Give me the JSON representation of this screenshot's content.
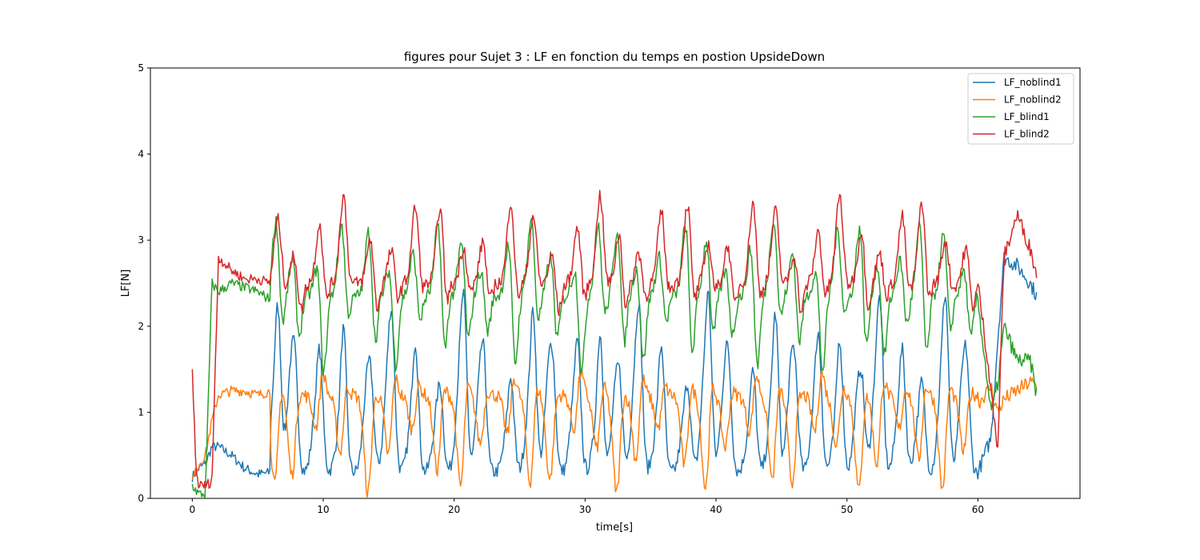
{
  "chart_data": {
    "type": "line",
    "title": "figures pour Sujet 3 : LF en fonction du temps en postion UpsideDown",
    "xlabel": "time[s]",
    "ylabel": "LF[N]",
    "xlim": [
      -3.2,
      67.8
    ],
    "ylim": [
      0,
      5
    ],
    "xticks": [
      "0",
      "10",
      "20",
      "30",
      "40",
      "50",
      "60"
    ],
    "yticks": [
      "0",
      "1",
      "2",
      "3",
      "4",
      "5"
    ],
    "legend_position": "top-right",
    "cycle_centers": [
      6.4,
      7.7,
      9.6,
      11.4,
      13.5,
      15.1,
      16.9,
      18.8,
      20.6,
      22.1,
      24.2,
      25.9,
      27.4,
      29.3,
      31.0,
      32.5,
      34.0,
      35.7,
      37.7,
      39.3,
      40.8,
      42.7,
      44.4,
      45.9,
      47.7,
      49.3,
      51.0,
      52.4,
      54.1,
      55.6,
      57.4,
      59.0
    ],
    "series": [
      {
        "name": "LF_noblind1",
        "color": "#1f77b4",
        "x": [
          0,
          0.5,
          1,
          1.5,
          2,
          3,
          4,
          5,
          6
        ],
        "values": [
          0.25,
          0.35,
          0.4,
          0.6,
          0.6,
          0.5,
          0.35,
          0.28,
          0.3
        ],
        "baseline": 0.3,
        "peak": 1.3,
        "peak_to": 2.8,
        "tail": {
          "x": [
            60,
            61,
            61.5,
            62,
            63,
            64,
            64.5
          ],
          "values": [
            0.3,
            0.7,
            1.8,
            2.8,
            2.7,
            2.5,
            2.35
          ]
        }
      },
      {
        "name": "LF_noblind2",
        "color": "#ff7f0e",
        "x": [
          0,
          0.5,
          1,
          1.5,
          2,
          3,
          4,
          5,
          6
        ],
        "values": [
          0.2,
          0.4,
          0.5,
          0.9,
          1.2,
          1.25,
          1.25,
          1.2,
          1.25
        ],
        "baseline": 1.2,
        "peak": 0.1,
        "peak_to": 2.0,
        "tail": {
          "x": [
            60,
            61,
            61.5,
            62,
            63,
            64,
            64.5
          ],
          "values": [
            1.1,
            1.3,
            1.0,
            1.15,
            1.25,
            1.35,
            1.3
          ]
        }
      },
      {
        "name": "LF_blind1",
        "color": "#2ca02c",
        "x": [
          0,
          0.5,
          1,
          1.5,
          2,
          3,
          4,
          5,
          6
        ],
        "values": [
          0.15,
          0.05,
          0.05,
          2.5,
          2.4,
          2.5,
          2.45,
          2.4,
          2.3
        ],
        "baseline": 2.35,
        "peak": 3.3,
        "peak_to": 0.5,
        "tail": {
          "x": [
            60,
            61,
            61.5,
            62,
            63,
            64,
            64.5
          ],
          "values": [
            2.3,
            1.0,
            1.3,
            2.0,
            1.6,
            1.6,
            1.2
          ]
        }
      },
      {
        "name": "LF_blind2",
        "color": "#d62728",
        "x": [
          0,
          0.3,
          0.5,
          1,
          1.5,
          2,
          3,
          4,
          5,
          6
        ],
        "values": [
          1.47,
          0.3,
          0.15,
          0.15,
          0.2,
          2.8,
          2.65,
          2.55,
          2.55,
          2.5
        ],
        "baseline": 2.5,
        "peak": 3.5,
        "peak_to": 1.6,
        "tail": {
          "x": [
            60,
            61,
            61.5,
            62,
            63,
            64,
            64.5
          ],
          "values": [
            2.5,
            1.3,
            0.5,
            2.8,
            3.3,
            2.9,
            2.6
          ]
        }
      }
    ]
  }
}
